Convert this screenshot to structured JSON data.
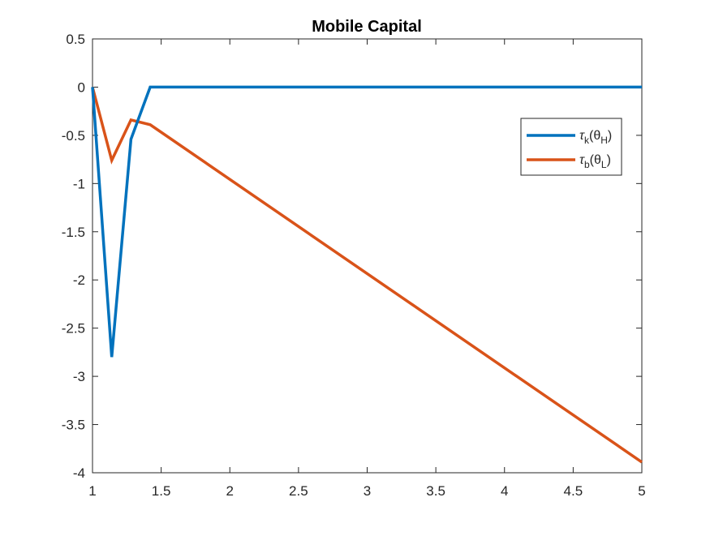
{
  "chart_data": {
    "type": "line",
    "title": "Mobile Capital",
    "xlabel": "",
    "ylabel": "",
    "xlim": [
      1,
      5
    ],
    "ylim": [
      -4,
      0.5
    ],
    "xticks": [
      1,
      1.5,
      2,
      2.5,
      3,
      3.5,
      4,
      4.5,
      5
    ],
    "xtick_labels": [
      "1",
      "1.5",
      "2",
      "2.5",
      "3",
      "3.5",
      "4",
      "4.5",
      "5"
    ],
    "yticks": [
      0.5,
      0,
      -0.5,
      -1,
      -1.5,
      -2,
      -2.5,
      -3,
      -3.5,
      -4
    ],
    "ytick_labels": [
      "0.5",
      "0",
      "-0.5",
      "-1",
      "-1.5",
      "-2",
      "-2.5",
      "-3",
      "-3.5",
      "-4"
    ],
    "grid": false,
    "legend_position": "top-right",
    "series": [
      {
        "name": "τ_k(θ_H)",
        "legend": {
          "main": "τ",
          "sub1": "k",
          "mid": "(θ",
          "sub2": "H",
          "end": ")"
        },
        "color": "#0072BD",
        "x": [
          1.0,
          1.14,
          1.28,
          1.42,
          5.0
        ],
        "y": [
          0.0,
          -2.8,
          -0.54,
          0.0,
          0.0
        ]
      },
      {
        "name": "τ_b(θ_L)",
        "legend": {
          "main": "τ",
          "sub1": "b",
          "mid": "(θ",
          "sub2": "L",
          "end": ")"
        },
        "color": "#D95319",
        "x": [
          1.0,
          1.14,
          1.28,
          1.42,
          5.0
        ],
        "y": [
          0.0,
          -0.76,
          -0.34,
          -0.39,
          -3.89
        ]
      }
    ]
  }
}
